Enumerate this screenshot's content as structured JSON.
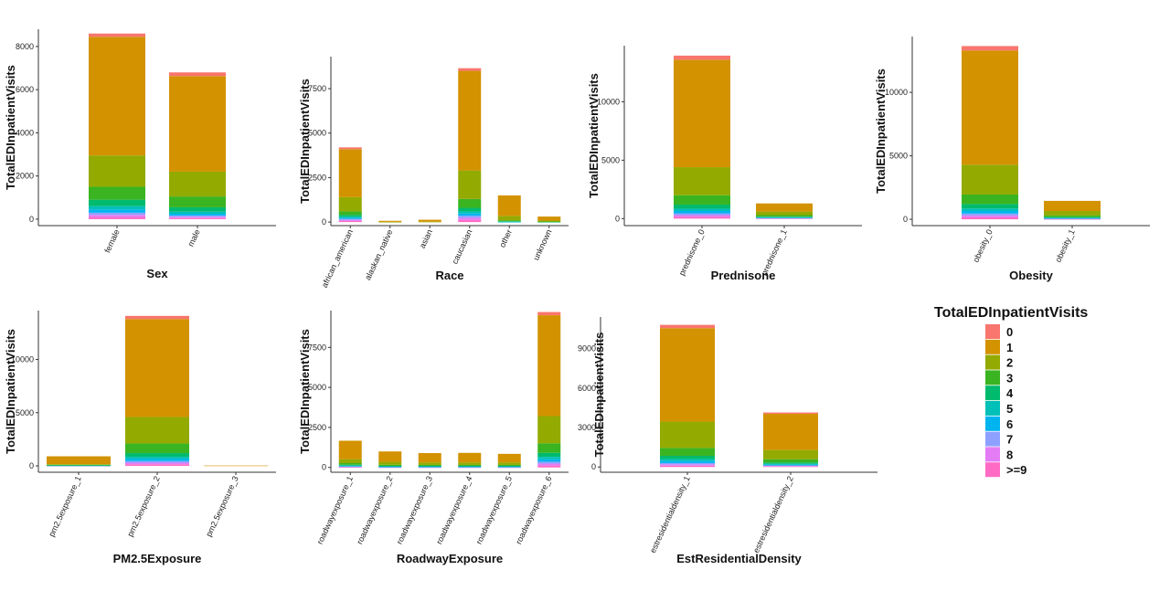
{
  "palette": {
    "0": "#F8766D",
    "1": "#D39200",
    "2": "#93AA00",
    "3": "#3AB421",
    "4": "#00BA6E",
    "5": "#00C0B8",
    "6": "#00B4EF",
    "7": "#8EA0FF",
    "8": "#E37CF5",
    ">=9": "#FF6BC4"
  },
  "legend": {
    "title": "TotalEDInpatientVisits",
    "levels": [
      "0",
      "1",
      "2",
      "3",
      "4",
      "5",
      "6",
      "7",
      "8",
      ">=9"
    ]
  },
  "chart_data": [
    {
      "type": "bar",
      "stacked": true,
      "xlabel": "Sex",
      "ylabel": "TotalEDInpatientVisits",
      "categories": [
        "female",
        "male"
      ],
      "yticks": [
        0,
        2000,
        4000,
        6000,
        8000
      ],
      "ylim": [
        -300,
        8800
      ],
      "series": [
        {
          "name": ">=9",
          "values": [
            100,
            50
          ]
        },
        {
          "name": "8",
          "values": [
            100,
            60
          ]
        },
        {
          "name": "7",
          "values": [
            100,
            60
          ]
        },
        {
          "name": "6",
          "values": [
            150,
            80
          ]
        },
        {
          "name": "5",
          "values": [
            150,
            100
          ]
        },
        {
          "name": "4",
          "values": [
            300,
            200
          ]
        },
        {
          "name": "3",
          "values": [
            600,
            500
          ]
        },
        {
          "name": "2",
          "values": [
            1450,
            1150
          ]
        },
        {
          "name": "1",
          "values": [
            5500,
            4430
          ]
        },
        {
          "name": "0",
          "values": [
            150,
            170
          ]
        }
      ]
    },
    {
      "type": "bar",
      "stacked": true,
      "xlabel": "Race",
      "ylabel": "TotalEDInpatientVisits",
      "categories": [
        "african_american",
        "alaskan_native",
        "asian",
        "caucasian",
        "other",
        "unknown"
      ],
      "yticks": [
        0,
        2500,
        5000,
        7500
      ],
      "ylim": [
        -200,
        9300
      ],
      "series": [
        {
          "name": ">=9",
          "values": [
            60,
            0,
            0,
            120,
            0,
            0
          ]
        },
        {
          "name": "8",
          "values": [
            60,
            0,
            0,
            120,
            0,
            0
          ]
        },
        {
          "name": "7",
          "values": [
            60,
            0,
            0,
            120,
            0,
            0
          ]
        },
        {
          "name": "6",
          "values": [
            60,
            0,
            0,
            120,
            10,
            0
          ]
        },
        {
          "name": "5",
          "values": [
            60,
            0,
            0,
            120,
            10,
            0
          ]
        },
        {
          "name": "4",
          "values": [
            100,
            0,
            0,
            200,
            30,
            10
          ]
        },
        {
          "name": "3",
          "values": [
            200,
            0,
            0,
            500,
            50,
            20
          ]
        },
        {
          "name": "2",
          "values": [
            800,
            10,
            20,
            1600,
            250,
            50
          ]
        },
        {
          "name": "1",
          "values": [
            2700,
            60,
            110,
            5600,
            1150,
            230
          ]
        },
        {
          "name": "0",
          "values": [
            100,
            0,
            0,
            150,
            0,
            0
          ]
        }
      ]
    },
    {
      "type": "bar",
      "stacked": true,
      "xlabel": "Prednisone",
      "ylabel": "TotalEDInpatientVisits",
      "categories": [
        "prednisone_0",
        "prednisone_1"
      ],
      "yticks": [
        0,
        5000,
        10000
      ],
      "ylim": [
        -600,
        14800
      ],
      "series": [
        {
          "name": ">=9",
          "values": [
            150,
            20
          ]
        },
        {
          "name": "8",
          "values": [
            150,
            20
          ]
        },
        {
          "name": "7",
          "values": [
            150,
            20
          ]
        },
        {
          "name": "6",
          "values": [
            200,
            30
          ]
        },
        {
          "name": "5",
          "values": [
            200,
            30
          ]
        },
        {
          "name": "4",
          "values": [
            350,
            50
          ]
        },
        {
          "name": "3",
          "values": [
            800,
            130
          ]
        },
        {
          "name": "2",
          "values": [
            2400,
            300
          ]
        },
        {
          "name": "1",
          "values": [
            9200,
            700
          ]
        },
        {
          "name": "0",
          "values": [
            350,
            0
          ]
        }
      ]
    },
    {
      "type": "bar",
      "stacked": true,
      "xlabel": "Obesity",
      "ylabel": "TotalEDInpatientVisits",
      "categories": [
        "obesity_0",
        "obesity_1"
      ],
      "yticks": [
        0,
        5000,
        10000
      ],
      "ylim": [
        -500,
        14400
      ],
      "series": [
        {
          "name": ">=9",
          "values": [
            150,
            20
          ]
        },
        {
          "name": "8",
          "values": [
            150,
            20
          ]
        },
        {
          "name": "7",
          "values": [
            150,
            20
          ]
        },
        {
          "name": "6",
          "values": [
            200,
            30
          ]
        },
        {
          "name": "5",
          "values": [
            200,
            30
          ]
        },
        {
          "name": "4",
          "values": [
            350,
            50
          ]
        },
        {
          "name": "3",
          "values": [
            750,
            130
          ]
        },
        {
          "name": "2",
          "values": [
            2350,
            350
          ]
        },
        {
          "name": "1",
          "values": [
            9000,
            800
          ]
        },
        {
          "name": "0",
          "values": [
            350,
            0
          ]
        }
      ]
    },
    {
      "type": "bar",
      "stacked": true,
      "xlabel": "PM2.5Exposure",
      "ylabel": "TotalEDInpatientVisits",
      "categories": [
        "pm2.5exposure_1",
        "pm2.5exposure_2",
        "pm2.5exposure_3"
      ],
      "yticks": [
        0,
        5000,
        10000
      ],
      "ylim": [
        -600,
        14600
      ],
      "series": [
        {
          "name": ">=9",
          "values": [
            10,
            150,
            0
          ]
        },
        {
          "name": "8",
          "values": [
            10,
            150,
            0
          ]
        },
        {
          "name": "7",
          "values": [
            10,
            150,
            0
          ]
        },
        {
          "name": "6",
          "values": [
            10,
            200,
            0
          ]
        },
        {
          "name": "5",
          "values": [
            10,
            200,
            0
          ]
        },
        {
          "name": "4",
          "values": [
            20,
            350,
            0
          ]
        },
        {
          "name": "3",
          "values": [
            30,
            900,
            0
          ]
        },
        {
          "name": "2",
          "values": [
            60,
            2500,
            0
          ]
        },
        {
          "name": "1",
          "values": [
            740,
            9200,
            30
          ]
        },
        {
          "name": "0",
          "values": [
            0,
            300,
            0
          ]
        }
      ]
    },
    {
      "type": "bar",
      "stacked": true,
      "xlabel": "RoadwayExposure",
      "ylabel": "TotalEDInpatientVisits",
      "categories": [
        "roadwayexposure_1",
        "roadwayexposure_2",
        "roadwayexposure_3",
        "roadwayexposure_4",
        "roadwayexposure_5",
        "roadwayexposure_6"
      ],
      "yticks": [
        0,
        2500,
        5000,
        7500
      ],
      "ylim": [
        -300,
        9800
      ],
      "series": [
        {
          "name": ">=9",
          "values": [
            20,
            10,
            10,
            10,
            10,
            120
          ]
        },
        {
          "name": "8",
          "values": [
            20,
            10,
            10,
            10,
            10,
            120
          ]
        },
        {
          "name": "7",
          "values": [
            20,
            10,
            10,
            10,
            10,
            120
          ]
        },
        {
          "name": "6",
          "values": [
            30,
            20,
            20,
            20,
            20,
            150
          ]
        },
        {
          "name": "5",
          "values": [
            30,
            20,
            20,
            20,
            20,
            150
          ]
        },
        {
          "name": "4",
          "values": [
            50,
            30,
            30,
            30,
            30,
            250
          ]
        },
        {
          "name": "3",
          "values": [
            100,
            70,
            60,
            60,
            60,
            600
          ]
        },
        {
          "name": "2",
          "values": [
            250,
            180,
            150,
            150,
            150,
            1700
          ]
        },
        {
          "name": "1",
          "values": [
            1150,
            650,
            590,
            600,
            540,
            6300
          ]
        },
        {
          "name": "0",
          "values": [
            0,
            0,
            0,
            0,
            0,
            200
          ]
        }
      ]
    },
    {
      "type": "bar",
      "stacked": true,
      "xlabel": "EstResidentialDensity",
      "ylabel": "TotalEDInpatientVisits",
      "categories": [
        "estresidentialdensity_1",
        "estresidentialdensity_2"
      ],
      "yticks": [
        0,
        3000,
        6000,
        9000
      ],
      "ylim": [
        -400,
        11400
      ],
      "series": [
        {
          "name": ">=9",
          "values": [
            100,
            40
          ]
        },
        {
          "name": "8",
          "values": [
            100,
            40
          ]
        },
        {
          "name": "7",
          "values": [
            100,
            40
          ]
        },
        {
          "name": "6",
          "values": [
            150,
            60
          ]
        },
        {
          "name": "5",
          "values": [
            150,
            60
          ]
        },
        {
          "name": "4",
          "values": [
            250,
            100
          ]
        },
        {
          "name": "3",
          "values": [
            600,
            250
          ]
        },
        {
          "name": "2",
          "values": [
            2000,
            700
          ]
        },
        {
          "name": "1",
          "values": [
            7100,
            2750
          ]
        },
        {
          "name": "0",
          "values": [
            250,
            100
          ]
        }
      ]
    }
  ]
}
